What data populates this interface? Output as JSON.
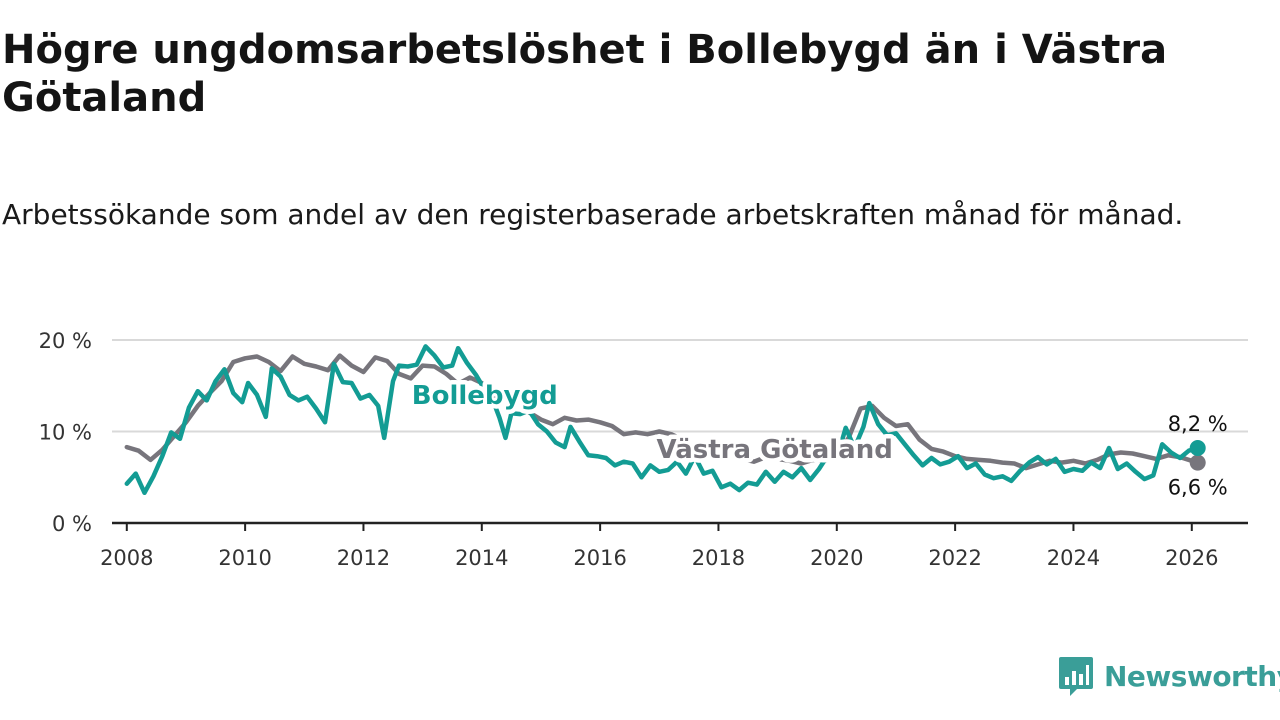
{
  "title": "Högre ungdomsarbetslöshet i Bollebygd än i Västra Götaland",
  "subtitle": "Arbetssökande som andel av den registerbaserade arbetskraften månad för månad.",
  "brand": {
    "name": "Newsworthy",
    "icon": "bar-chart-speech-bubble-icon"
  },
  "colors": {
    "bollebygd": "#139c94",
    "vastra_gotaland": "#77757c",
    "grid": "#d9d9d9",
    "axis": "#222222",
    "brand": "#3a9e98"
  },
  "chart_data": {
    "type": "line",
    "title": "Högre ungdomsarbetslöshet i Bollebygd än i Västra Götaland",
    "xlabel": "",
    "ylabel": "",
    "ylim": [
      0,
      20
    ],
    "xlim": [
      2007.75,
      2026.95
    ],
    "y_ticks": [
      {
        "value": 0,
        "label": "0 %"
      },
      {
        "value": 10,
        "label": "10 %"
      },
      {
        "value": 20,
        "label": "20 %"
      }
    ],
    "x_ticks": [
      {
        "value": 2008,
        "label": "2008"
      },
      {
        "value": 2010,
        "label": "2010"
      },
      {
        "value": 2012,
        "label": "2012"
      },
      {
        "value": 2014,
        "label": "2014"
      },
      {
        "value": 2016,
        "label": "2016"
      },
      {
        "value": 2018,
        "label": "2018"
      },
      {
        "value": 2020,
        "label": "2020"
      },
      {
        "value": 2022,
        "label": "2022"
      },
      {
        "value": 2024,
        "label": "2024"
      },
      {
        "value": 2026,
        "label": "2026"
      }
    ],
    "grid": true,
    "series": [
      {
        "name": "Västra Götaland",
        "label": "Västra Götaland",
        "key": "vastra_gotaland",
        "end_label": "6,6 %",
        "points": [
          [
            2008.0,
            8.3
          ],
          [
            2008.2,
            7.9
          ],
          [
            2008.4,
            6.9
          ],
          [
            2008.6,
            8.0
          ],
          [
            2008.8,
            9.5
          ],
          [
            2009.0,
            11.0
          ],
          [
            2009.2,
            12.8
          ],
          [
            2009.4,
            14.2
          ],
          [
            2009.6,
            15.5
          ],
          [
            2009.8,
            17.6
          ],
          [
            2010.0,
            18.0
          ],
          [
            2010.2,
            18.2
          ],
          [
            2010.4,
            17.6
          ],
          [
            2010.6,
            16.6
          ],
          [
            2010.8,
            18.2
          ],
          [
            2011.0,
            17.4
          ],
          [
            2011.2,
            17.1
          ],
          [
            2011.4,
            16.7
          ],
          [
            2011.6,
            18.3
          ],
          [
            2011.8,
            17.2
          ],
          [
            2012.0,
            16.5
          ],
          [
            2012.2,
            18.1
          ],
          [
            2012.4,
            17.7
          ],
          [
            2012.6,
            16.3
          ],
          [
            2012.8,
            15.8
          ],
          [
            2013.0,
            17.2
          ],
          [
            2013.2,
            17.1
          ],
          [
            2013.4,
            16.3
          ],
          [
            2013.6,
            15.2
          ],
          [
            2013.8,
            15.9
          ],
          [
            2014.0,
            15.3
          ],
          [
            2014.2,
            14.0
          ],
          [
            2014.4,
            13.2
          ],
          [
            2014.6,
            13.6
          ],
          [
            2014.8,
            12.1
          ],
          [
            2015.0,
            11.3
          ],
          [
            2015.2,
            10.8
          ],
          [
            2015.4,
            11.5
          ],
          [
            2015.6,
            11.2
          ],
          [
            2015.8,
            11.3
          ],
          [
            2016.0,
            11.0
          ],
          [
            2016.2,
            10.6
          ],
          [
            2016.4,
            9.7
          ],
          [
            2016.6,
            9.9
          ],
          [
            2016.8,
            9.7
          ],
          [
            2017.0,
            10.0
          ],
          [
            2017.2,
            9.7
          ],
          [
            2017.4,
            9.1
          ],
          [
            2017.6,
            8.4
          ],
          [
            2017.8,
            8.1
          ],
          [
            2018.0,
            8.3
          ],
          [
            2018.2,
            7.5
          ],
          [
            2018.4,
            7.0
          ],
          [
            2018.6,
            6.7
          ],
          [
            2018.8,
            7.2
          ],
          [
            2019.0,
            7.0
          ],
          [
            2019.2,
            6.8
          ],
          [
            2019.4,
            6.5
          ],
          [
            2019.6,
            6.9
          ],
          [
            2019.8,
            6.8
          ],
          [
            2020.0,
            7.4
          ],
          [
            2020.2,
            9.3
          ],
          [
            2020.4,
            12.5
          ],
          [
            2020.6,
            12.8
          ],
          [
            2020.8,
            11.5
          ],
          [
            2021.0,
            10.6
          ],
          [
            2021.2,
            10.8
          ],
          [
            2021.4,
            9.1
          ],
          [
            2021.6,
            8.1
          ],
          [
            2021.8,
            7.8
          ],
          [
            2022.0,
            7.3
          ],
          [
            2022.2,
            7.0
          ],
          [
            2022.4,
            6.9
          ],
          [
            2022.6,
            6.8
          ],
          [
            2022.8,
            6.6
          ],
          [
            2023.0,
            6.5
          ],
          [
            2023.2,
            6.0
          ],
          [
            2023.4,
            6.4
          ],
          [
            2023.6,
            6.8
          ],
          [
            2023.8,
            6.6
          ],
          [
            2024.0,
            6.8
          ],
          [
            2024.2,
            6.5
          ],
          [
            2024.4,
            6.9
          ],
          [
            2024.6,
            7.5
          ],
          [
            2024.8,
            7.7
          ],
          [
            2025.0,
            7.6
          ],
          [
            2025.2,
            7.3
          ],
          [
            2025.4,
            7.0
          ],
          [
            2025.6,
            7.4
          ],
          [
            2025.8,
            7.2
          ],
          [
            2026.0,
            6.8
          ],
          [
            2026.1,
            6.6
          ]
        ]
      },
      {
        "name": "Bollebygd",
        "label": "Bollebygd",
        "key": "bollebygd",
        "end_label": "8,2 %",
        "points": [
          [
            2008.0,
            4.3
          ],
          [
            2008.15,
            5.4
          ],
          [
            2008.3,
            3.3
          ],
          [
            2008.45,
            5.1
          ],
          [
            2008.6,
            7.3
          ],
          [
            2008.75,
            9.9
          ],
          [
            2008.9,
            9.2
          ],
          [
            2009.05,
            12.6
          ],
          [
            2009.2,
            14.4
          ],
          [
            2009.35,
            13.4
          ],
          [
            2009.5,
            15.5
          ],
          [
            2009.65,
            16.8
          ],
          [
            2009.8,
            14.2
          ],
          [
            2009.95,
            13.2
          ],
          [
            2010.05,
            15.3
          ],
          [
            2010.2,
            14.0
          ],
          [
            2010.35,
            11.6
          ],
          [
            2010.45,
            16.9
          ],
          [
            2010.6,
            16.0
          ],
          [
            2010.75,
            14.0
          ],
          [
            2010.9,
            13.4
          ],
          [
            2011.05,
            13.8
          ],
          [
            2011.2,
            12.5
          ],
          [
            2011.35,
            11.0
          ],
          [
            2011.5,
            17.4
          ],
          [
            2011.65,
            15.4
          ],
          [
            2011.8,
            15.3
          ],
          [
            2011.95,
            13.6
          ],
          [
            2012.1,
            14.0
          ],
          [
            2012.25,
            12.8
          ],
          [
            2012.35,
            9.3
          ],
          [
            2012.5,
            15.5
          ],
          [
            2012.6,
            17.2
          ],
          [
            2012.75,
            17.1
          ],
          [
            2012.9,
            17.3
          ],
          [
            2013.05,
            19.3
          ],
          [
            2013.2,
            18.3
          ],
          [
            2013.35,
            17.0
          ],
          [
            2013.5,
            17.2
          ],
          [
            2013.6,
            19.1
          ],
          [
            2013.75,
            17.5
          ],
          [
            2013.9,
            16.2
          ],
          [
            2014.0,
            15.1
          ],
          [
            2014.1,
            14.0
          ],
          [
            2014.2,
            13.2
          ],
          [
            2014.3,
            11.5
          ],
          [
            2014.4,
            9.3
          ],
          [
            2014.5,
            12.0
          ],
          [
            2014.65,
            11.9
          ],
          [
            2014.8,
            12.3
          ],
          [
            2014.95,
            10.8
          ],
          [
            2015.1,
            10.0
          ],
          [
            2015.25,
            8.8
          ],
          [
            2015.4,
            8.3
          ],
          [
            2015.5,
            10.5
          ],
          [
            2015.65,
            8.9
          ],
          [
            2015.8,
            7.4
          ],
          [
            2015.95,
            7.3
          ],
          [
            2016.1,
            7.1
          ],
          [
            2016.25,
            6.3
          ],
          [
            2016.4,
            6.7
          ],
          [
            2016.55,
            6.5
          ],
          [
            2016.7,
            5.0
          ],
          [
            2016.85,
            6.3
          ],
          [
            2017.0,
            5.6
          ],
          [
            2017.15,
            5.8
          ],
          [
            2017.3,
            6.7
          ],
          [
            2017.45,
            5.4
          ],
          [
            2017.6,
            7.3
          ],
          [
            2017.75,
            5.4
          ],
          [
            2017.9,
            5.7
          ],
          [
            2018.05,
            3.9
          ],
          [
            2018.2,
            4.3
          ],
          [
            2018.35,
            3.6
          ],
          [
            2018.5,
            4.4
          ],
          [
            2018.65,
            4.2
          ],
          [
            2018.8,
            5.6
          ],
          [
            2018.95,
            4.5
          ],
          [
            2019.1,
            5.6
          ],
          [
            2019.25,
            5.0
          ],
          [
            2019.4,
            6.0
          ],
          [
            2019.55,
            4.7
          ],
          [
            2019.7,
            5.9
          ],
          [
            2019.85,
            7.4
          ],
          [
            2020.0,
            7.0
          ],
          [
            2020.15,
            10.4
          ],
          [
            2020.3,
            8.2
          ],
          [
            2020.45,
            10.5
          ],
          [
            2020.55,
            13.1
          ],
          [
            2020.7,
            10.8
          ],
          [
            2020.85,
            9.6
          ],
          [
            2021.0,
            9.8
          ],
          [
            2021.15,
            8.6
          ],
          [
            2021.3,
            7.4
          ],
          [
            2021.45,
            6.3
          ],
          [
            2021.6,
            7.1
          ],
          [
            2021.75,
            6.4
          ],
          [
            2021.9,
            6.7
          ],
          [
            2022.05,
            7.3
          ],
          [
            2022.2,
            6.0
          ],
          [
            2022.35,
            6.5
          ],
          [
            2022.5,
            5.3
          ],
          [
            2022.65,
            4.9
          ],
          [
            2022.8,
            5.1
          ],
          [
            2022.95,
            4.6
          ],
          [
            2023.1,
            5.7
          ],
          [
            2023.25,
            6.6
          ],
          [
            2023.4,
            7.2
          ],
          [
            2023.55,
            6.4
          ],
          [
            2023.7,
            7.0
          ],
          [
            2023.85,
            5.6
          ],
          [
            2024.0,
            5.9
          ],
          [
            2024.15,
            5.7
          ],
          [
            2024.3,
            6.6
          ],
          [
            2024.45,
            6.0
          ],
          [
            2024.6,
            8.2
          ],
          [
            2024.75,
            5.9
          ],
          [
            2024.9,
            6.5
          ],
          [
            2025.05,
            5.6
          ],
          [
            2025.2,
            4.8
          ],
          [
            2025.35,
            5.2
          ],
          [
            2025.5,
            8.6
          ],
          [
            2025.65,
            7.7
          ],
          [
            2025.8,
            7.1
          ],
          [
            2025.95,
            7.9
          ],
          [
            2026.1,
            8.2
          ]
        ]
      }
    ]
  }
}
